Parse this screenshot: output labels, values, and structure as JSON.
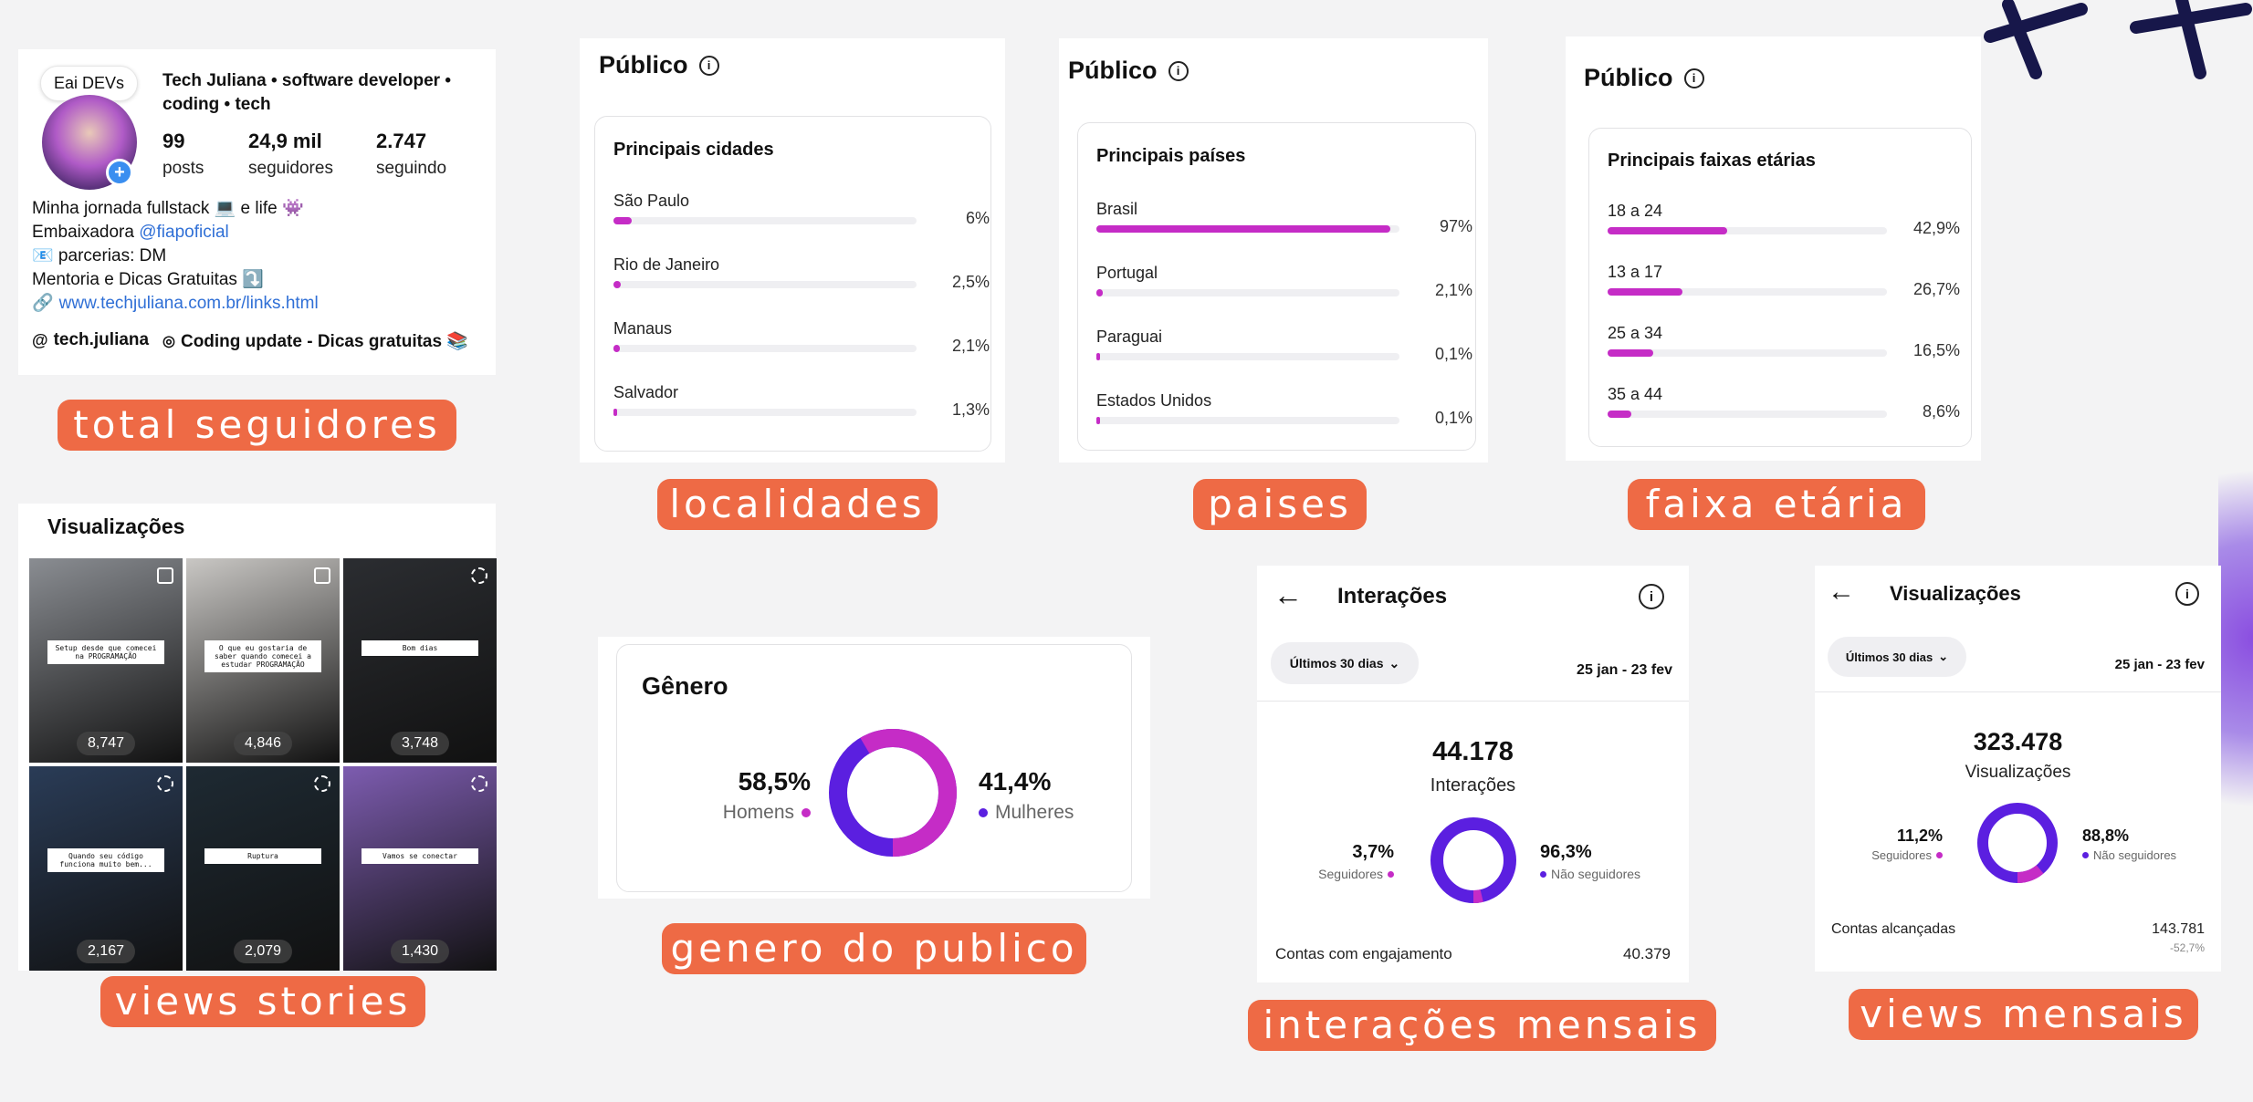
{
  "colors": {
    "accent": "#c52cc6",
    "purple": "#5b1fe0",
    "tag": "#ee6a45"
  },
  "profile": {
    "note": "Eai DEVs",
    "name": "Tech Juliana • software developer • coding • tech",
    "stats": [
      {
        "num": "99",
        "label": "posts"
      },
      {
        "num": "24,9 mil",
        "label": "seguidores"
      },
      {
        "num": "2.747",
        "label": "seguindo"
      }
    ],
    "bio": [
      "Minha jornada fullstack 💻 e life 👾"
    ],
    "bio2_prefix": "Embaixadora ",
    "bio2_link": "@fiapoficial",
    "bio3": "📧 parcerias: DM",
    "bio4": "Mentoria e Dicas Gratuitas ⤵️",
    "url": "www.techjuliana.com.br/links.html",
    "threads": "tech.juliana",
    "channel": "Coding update - Dicas gratuitas 📚"
  },
  "tags": {
    "followers": "total seguidores",
    "cities": "localidades",
    "countries": "paises",
    "ages": "faixa etária",
    "stories": "views stories",
    "gender": "genero do publico",
    "interactions": "interações mensais",
    "views": "views mensais"
  },
  "cities": {
    "header": "Público",
    "title": "Principais cidades",
    "rows": [
      {
        "label": "São Paulo",
        "value": "6%",
        "pct": 6
      },
      {
        "label": "Rio de Janeiro",
        "value": "2,5%",
        "pct": 2.5
      },
      {
        "label": "Manaus",
        "value": "2,1%",
        "pct": 2.1
      },
      {
        "label": "Salvador",
        "value": "1,3%",
        "pct": 1.3
      }
    ]
  },
  "countries": {
    "header": "Público",
    "title": "Principais países",
    "rows": [
      {
        "label": "Brasil",
        "value": "97%",
        "pct": 97
      },
      {
        "label": "Portugal",
        "value": "2,1%",
        "pct": 2.1
      },
      {
        "label": "Paraguai",
        "value": "0,1%",
        "pct": 0.1
      },
      {
        "label": "Estados Unidos",
        "value": "0,1%",
        "pct": 0.1
      }
    ]
  },
  "ages": {
    "header": "Público",
    "title": "Principais faixas etárias",
    "rows": [
      {
        "label": "18 a 24",
        "value": "42,9%",
        "pct": 42.9
      },
      {
        "label": "13 a 17",
        "value": "26,7%",
        "pct": 26.7
      },
      {
        "label": "25 a 34",
        "value": "16,5%",
        "pct": 16.5
      },
      {
        "label": "35 a 44",
        "value": "8,6%",
        "pct": 8.6
      }
    ]
  },
  "stories": {
    "title": "Visualizações",
    "items": [
      {
        "count": "8,747",
        "caption": "Setup desde que comecei na PROGRAMAÇÃO",
        "bg": "#8a8d92"
      },
      {
        "count": "4,846",
        "caption": "O que eu gostaria de saber quando comecei a estudar PROGRAMAÇÃO",
        "bg": "#c9c7c4"
      },
      {
        "count": "3,748",
        "caption": "Bom dias",
        "bg": "#2b2d31"
      },
      {
        "count": "2,167",
        "caption": "Quando seu código funciona muito bem...",
        "bg": "#2a3c57"
      },
      {
        "count": "2,079",
        "caption": "Ruptura",
        "bg": "#1e2a33"
      },
      {
        "count": "1,430",
        "caption": "Vamos se conectar",
        "bg": "#7d5cb0"
      }
    ]
  },
  "gender": {
    "title": "Gênero",
    "men_pct": "58,5%",
    "men_label": "Homens",
    "women_pct": "41,4%",
    "women_label": "Mulheres",
    "men_value": 58.5,
    "women_value": 41.4
  },
  "interactions": {
    "title": "Interações",
    "filter": "Últimos 30 dias",
    "range": "25 jan - 23 fev",
    "total": "44.178",
    "total_label": "Interações",
    "followers_pct": "3,7%",
    "followers_label": "Seguidores",
    "nonfollowers_pct": "96,3%",
    "nonfollowers_label": "Não seguidores",
    "followers_value": 3.7,
    "footer_label": "Contas com engajamento",
    "footer_value": "40.379"
  },
  "views": {
    "title": "Visualizações",
    "filter": "Últimos 30 dias",
    "range": "25 jan - 23 fev",
    "total": "323.478",
    "total_label": "Visualizações",
    "followers_pct": "11,2%",
    "followers_label": "Seguidores",
    "nonfollowers_pct": "88,8%",
    "nonfollowers_label": "Não seguidores",
    "followers_value": 11.2,
    "footer_label": "Contas alcançadas",
    "footer_value": "143.781",
    "footer_delta": "-52,7%"
  }
}
